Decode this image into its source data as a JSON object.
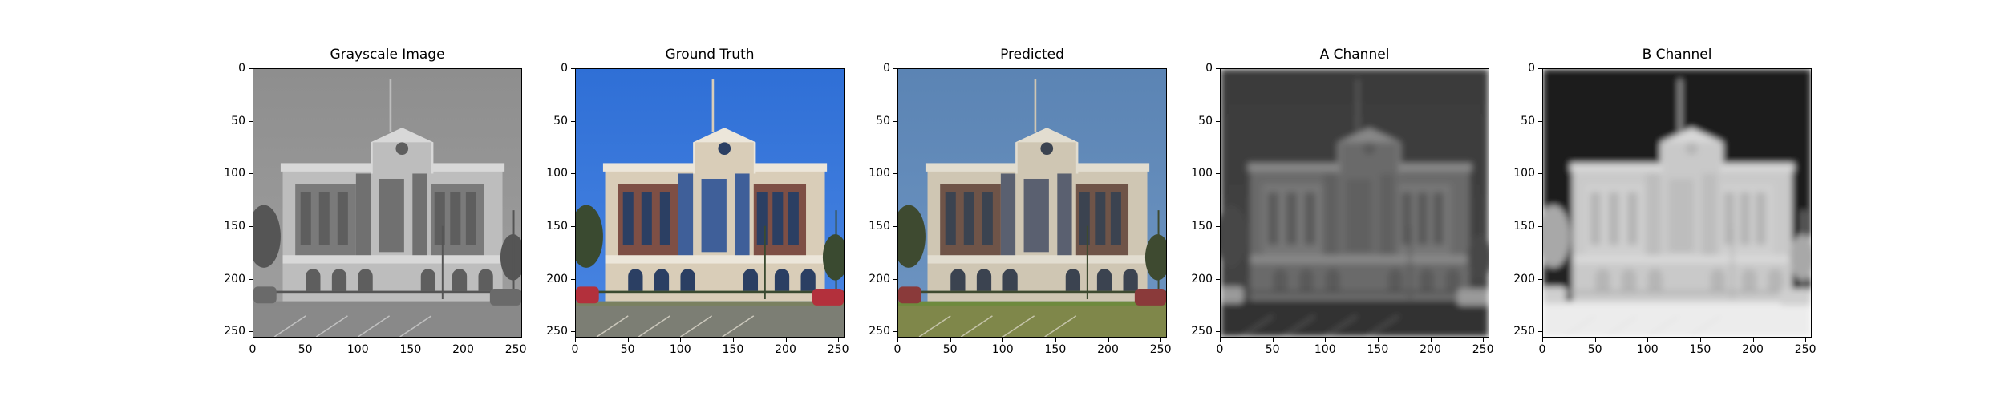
{
  "figure": {
    "panels": [
      {
        "title": "Grayscale Image",
        "variant": "gray"
      },
      {
        "title": "Ground Truth",
        "variant": "truth"
      },
      {
        "title": "Predicted",
        "variant": "pred"
      },
      {
        "title": "A Channel",
        "variant": "a"
      },
      {
        "title": "B Channel",
        "variant": "b"
      }
    ],
    "x_ticks": [
      "0",
      "50",
      "100",
      "150",
      "200",
      "250"
    ],
    "y_ticks": [
      "0",
      "50",
      "100",
      "150",
      "200",
      "250"
    ],
    "image_size": 256
  }
}
